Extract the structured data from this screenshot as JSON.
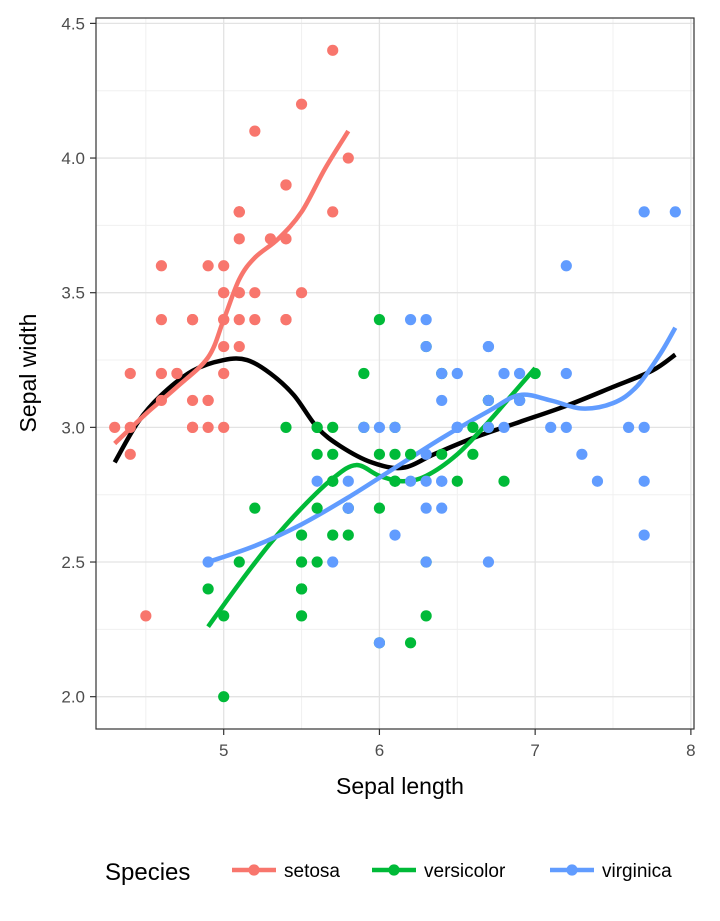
{
  "chart_data": {
    "type": "scatter",
    "xlabel": "Sepal length",
    "ylabel": "Sepal width",
    "xlim": [
      4.18,
      8.02
    ],
    "ylim": [
      1.88,
      4.52
    ],
    "x_ticks": [
      5,
      6,
      7,
      8
    ],
    "x_tick_labels": [
      "5",
      "6",
      "7",
      "8"
    ],
    "y_ticks": [
      2.0,
      2.5,
      3.0,
      3.5,
      4.0,
      4.5
    ],
    "y_tick_labels": [
      "2.0",
      "2.5",
      "3.0",
      "3.5",
      "4.0",
      "4.5"
    ],
    "grid": true,
    "legend": {
      "title": "Species",
      "position": "bottom"
    },
    "series": [
      {
        "name": "setosa",
        "color": "#F8766D",
        "points": [
          [
            5.1,
            3.5
          ],
          [
            4.9,
            3.0
          ],
          [
            4.7,
            3.2
          ],
          [
            4.6,
            3.1
          ],
          [
            5.0,
            3.6
          ],
          [
            5.4,
            3.9
          ],
          [
            4.6,
            3.4
          ],
          [
            5.0,
            3.4
          ],
          [
            4.4,
            2.9
          ],
          [
            4.9,
            3.1
          ],
          [
            5.4,
            3.7
          ],
          [
            4.8,
            3.4
          ],
          [
            4.8,
            3.0
          ],
          [
            4.3,
            3.0
          ],
          [
            5.8,
            4.0
          ],
          [
            5.7,
            4.4
          ],
          [
            5.4,
            3.9
          ],
          [
            5.1,
            3.5
          ],
          [
            5.7,
            3.8
          ],
          [
            5.1,
            3.8
          ],
          [
            5.4,
            3.4
          ],
          [
            5.1,
            3.7
          ],
          [
            4.6,
            3.6
          ],
          [
            5.1,
            3.3
          ],
          [
            4.8,
            3.4
          ],
          [
            5.0,
            3.0
          ],
          [
            5.0,
            3.4
          ],
          [
            5.2,
            3.5
          ],
          [
            5.2,
            3.4
          ],
          [
            4.7,
            3.2
          ],
          [
            4.8,
            3.1
          ],
          [
            5.4,
            3.4
          ],
          [
            5.2,
            4.1
          ],
          [
            5.5,
            4.2
          ],
          [
            4.9,
            3.1
          ],
          [
            5.0,
            3.2
          ],
          [
            5.5,
            3.5
          ],
          [
            4.9,
            3.6
          ],
          [
            4.4,
            3.0
          ],
          [
            5.1,
            3.4
          ],
          [
            5.0,
            3.5
          ],
          [
            4.5,
            2.3
          ],
          [
            4.4,
            3.2
          ],
          [
            5.0,
            3.5
          ],
          [
            5.1,
            3.8
          ],
          [
            4.8,
            3.0
          ],
          [
            5.1,
            3.8
          ],
          [
            4.6,
            3.2
          ],
          [
            5.3,
            3.7
          ],
          [
            5.0,
            3.3
          ]
        ],
        "smooth": [
          [
            4.3,
            2.94
          ],
          [
            4.5,
            3.05
          ],
          [
            4.7,
            3.15
          ],
          [
            4.9,
            3.26
          ],
          [
            5.0,
            3.4
          ],
          [
            5.1,
            3.55
          ],
          [
            5.2,
            3.63
          ],
          [
            5.35,
            3.7
          ],
          [
            5.5,
            3.8
          ],
          [
            5.65,
            3.96
          ],
          [
            5.8,
            4.1
          ]
        ]
      },
      {
        "name": "versicolor",
        "color": "#00BA38",
        "points": [
          [
            7.0,
            3.2
          ],
          [
            6.4,
            3.2
          ],
          [
            6.9,
            3.1
          ],
          [
            5.5,
            2.3
          ],
          [
            6.5,
            2.8
          ],
          [
            5.7,
            2.8
          ],
          [
            6.3,
            3.3
          ],
          [
            4.9,
            2.4
          ],
          [
            6.6,
            2.9
          ],
          [
            5.2,
            2.7
          ],
          [
            5.0,
            2.0
          ],
          [
            5.9,
            3.0
          ],
          [
            6.0,
            2.2
          ],
          [
            6.1,
            2.9
          ],
          [
            5.6,
            2.9
          ],
          [
            6.7,
            3.1
          ],
          [
            5.6,
            3.0
          ],
          [
            5.8,
            2.7
          ],
          [
            6.2,
            2.2
          ],
          [
            5.6,
            2.5
          ],
          [
            5.9,
            3.2
          ],
          [
            6.1,
            2.8
          ],
          [
            6.3,
            2.5
          ],
          [
            6.1,
            2.8
          ],
          [
            6.4,
            2.9
          ],
          [
            6.6,
            3.0
          ],
          [
            6.8,
            2.8
          ],
          [
            6.7,
            3.0
          ],
          [
            6.0,
            2.9
          ],
          [
            5.7,
            2.6
          ],
          [
            5.5,
            2.4
          ],
          [
            5.5,
            2.4
          ],
          [
            5.8,
            2.7
          ],
          [
            6.0,
            2.7
          ],
          [
            5.4,
            3.0
          ],
          [
            6.0,
            3.4
          ],
          [
            6.7,
            3.1
          ],
          [
            6.3,
            2.3
          ],
          [
            5.6,
            3.0
          ],
          [
            5.5,
            2.5
          ],
          [
            5.5,
            2.6
          ],
          [
            6.1,
            3.0
          ],
          [
            5.8,
            2.6
          ],
          [
            5.0,
            2.3
          ],
          [
            5.6,
            2.7
          ],
          [
            5.7,
            3.0
          ],
          [
            5.7,
            2.9
          ],
          [
            6.2,
            2.9
          ],
          [
            5.1,
            2.5
          ],
          [
            5.7,
            2.8
          ]
        ],
        "smooth": [
          [
            4.9,
            2.26
          ],
          [
            5.1,
            2.42
          ],
          [
            5.3,
            2.57
          ],
          [
            5.5,
            2.7
          ],
          [
            5.7,
            2.81
          ],
          [
            5.85,
            2.86
          ],
          [
            6.0,
            2.82
          ],
          [
            6.15,
            2.8
          ],
          [
            6.3,
            2.82
          ],
          [
            6.5,
            2.9
          ],
          [
            6.7,
            3.02
          ],
          [
            6.85,
            3.12
          ],
          [
            7.0,
            3.22
          ]
        ]
      },
      {
        "name": "virginica",
        "color": "#619CFF",
        "points": [
          [
            6.3,
            3.3
          ],
          [
            5.8,
            2.7
          ],
          [
            7.1,
            3.0
          ],
          [
            6.3,
            2.9
          ],
          [
            6.5,
            3.0
          ],
          [
            7.6,
            3.0
          ],
          [
            4.9,
            2.5
          ],
          [
            7.3,
            2.9
          ],
          [
            6.7,
            2.5
          ],
          [
            7.2,
            3.6
          ],
          [
            6.5,
            3.2
          ],
          [
            6.4,
            2.7
          ],
          [
            6.8,
            3.0
          ],
          [
            5.7,
            2.5
          ],
          [
            5.8,
            2.8
          ],
          [
            6.4,
            3.2
          ],
          [
            6.5,
            3.0
          ],
          [
            7.7,
            3.8
          ],
          [
            7.7,
            2.6
          ],
          [
            6.0,
            2.2
          ],
          [
            6.9,
            3.2
          ],
          [
            5.6,
            2.8
          ],
          [
            7.7,
            2.8
          ],
          [
            6.3,
            2.7
          ],
          [
            6.7,
            3.3
          ],
          [
            7.2,
            3.2
          ],
          [
            6.2,
            2.8
          ],
          [
            6.1,
            3.0
          ],
          [
            6.4,
            2.8
          ],
          [
            7.2,
            3.0
          ],
          [
            7.4,
            2.8
          ],
          [
            7.9,
            3.8
          ],
          [
            6.4,
            2.8
          ],
          [
            6.3,
            2.8
          ],
          [
            6.1,
            2.6
          ],
          [
            7.7,
            3.0
          ],
          [
            6.3,
            3.4
          ],
          [
            6.4,
            3.1
          ],
          [
            6.0,
            3.0
          ],
          [
            6.9,
            3.1
          ],
          [
            6.7,
            3.1
          ],
          [
            6.9,
            3.1
          ],
          [
            5.8,
            2.7
          ],
          [
            6.8,
            3.2
          ],
          [
            6.7,
            3.3
          ],
          [
            6.7,
            3.0
          ],
          [
            6.3,
            2.5
          ],
          [
            6.5,
            3.0
          ],
          [
            6.2,
            3.4
          ],
          [
            5.9,
            3.0
          ]
        ],
        "smooth": [
          [
            4.9,
            2.5
          ],
          [
            5.2,
            2.56
          ],
          [
            5.5,
            2.64
          ],
          [
            5.8,
            2.74
          ],
          [
            6.1,
            2.85
          ],
          [
            6.4,
            2.96
          ],
          [
            6.7,
            3.06
          ],
          [
            6.9,
            3.12
          ],
          [
            7.1,
            3.1
          ],
          [
            7.3,
            3.07
          ],
          [
            7.5,
            3.09
          ],
          [
            7.65,
            3.15
          ],
          [
            7.8,
            3.27
          ],
          [
            7.9,
            3.37
          ]
        ]
      }
    ],
    "overall_smooth": {
      "color": "#000000",
      "points": [
        [
          4.3,
          2.87
        ],
        [
          4.45,
          3.02
        ],
        [
          4.6,
          3.12
        ],
        [
          4.8,
          3.21
        ],
        [
          5.0,
          3.25
        ],
        [
          5.15,
          3.25
        ],
        [
          5.3,
          3.2
        ],
        [
          5.45,
          3.12
        ],
        [
          5.6,
          3.0
        ],
        [
          5.75,
          2.93
        ],
        [
          5.95,
          2.87
        ],
        [
          6.15,
          2.85
        ],
        [
          6.35,
          2.9
        ],
        [
          6.6,
          2.96
        ],
        [
          6.9,
          3.02
        ],
        [
          7.2,
          3.08
        ],
        [
          7.5,
          3.15
        ],
        [
          7.75,
          3.21
        ],
        [
          7.9,
          3.27
        ]
      ]
    }
  }
}
